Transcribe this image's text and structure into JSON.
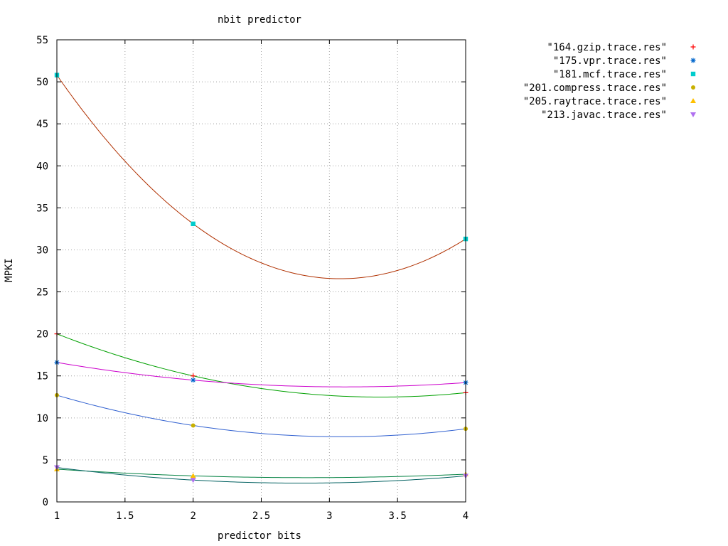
{
  "chart_data": {
    "type": "line",
    "title": "nbit predictor",
    "xlabel": "predictor bits",
    "ylabel": "MPKI",
    "xlim": [
      1,
      4
    ],
    "ylim": [
      0,
      55
    ],
    "x_ticks": [
      "1",
      "1.5",
      "2",
      "2.5",
      "3",
      "3.5",
      "4"
    ],
    "y_ticks": [
      "0",
      "5",
      "10",
      "15",
      "20",
      "25",
      "30",
      "35",
      "40",
      "45",
      "50",
      "55"
    ],
    "grid": true,
    "legend_position": "outside-top-right",
    "x": [
      1,
      2,
      4
    ],
    "series": [
      {
        "name": "\"164.gzip.trace.res\"",
        "values": [
          20.0,
          15.0,
          13.0
        ],
        "point_color": "#ff0000",
        "line_color": "#00a000",
        "marker": "plus"
      },
      {
        "name": "\"175.vpr.trace.res\"",
        "values": [
          16.6,
          14.5,
          14.2
        ],
        "point_color": "#0066cc",
        "line_color": "#cc00cc",
        "marker": "asterisk"
      },
      {
        "name": "\"181.mcf.trace.res\"",
        "values": [
          50.8,
          33.1,
          31.3
        ],
        "point_color": "#00cccc",
        "line_color": "#b03000",
        "marker": "square"
      },
      {
        "name": "\"201.compress.trace.res\"",
        "values": [
          12.7,
          9.1,
          8.7
        ],
        "point_color": "#c8b000",
        "line_color": "#3060d0",
        "marker": "circle"
      },
      {
        "name": "\"205.raytrace.trace.res\"",
        "values": [
          3.9,
          3.1,
          3.3
        ],
        "point_color": "#ffc000",
        "line_color": "#008040",
        "marker": "triangle-up"
      },
      {
        "name": "\"213.javac.trace.res\"",
        "values": [
          4.1,
          2.6,
          3.1
        ],
        "point_color": "#b070f0",
        "line_color": "#006060",
        "marker": "triangle-down"
      }
    ]
  }
}
